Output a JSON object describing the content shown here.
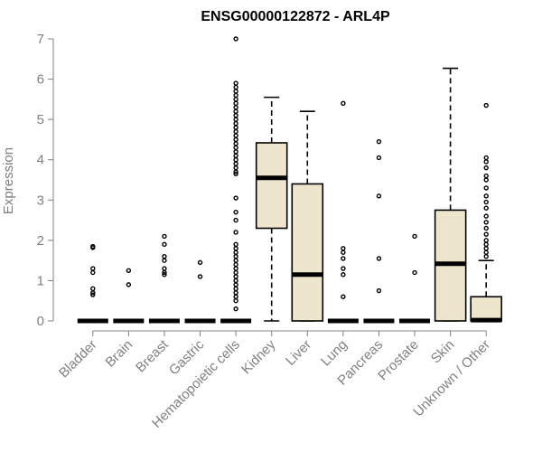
{
  "chart_data": {
    "type": "boxplot",
    "title": "ENSG00000122872 - ARL4P",
    "xlabel": "",
    "ylabel": "Expression",
    "ylim": [
      0,
      7
    ],
    "yticks": [
      0,
      1,
      2,
      3,
      4,
      5,
      6,
      7
    ],
    "grid": false,
    "box_fill": "#ede6cc",
    "categories": [
      "Bladder",
      "Brain",
      "Breast",
      "Gastric",
      "Hematopoietic cells",
      "Kidney",
      "Liver",
      "Lung",
      "Pancreas",
      "Prostate",
      "Skin",
      "Unknown / Other"
    ],
    "boxes": [
      {
        "q1": 0,
        "median": 0,
        "q3": 0,
        "low": 0,
        "high": 0,
        "outliers": [
          1.85,
          1.82,
          1.3,
          1.2,
          0.8,
          0.7,
          0.65
        ]
      },
      {
        "q1": 0,
        "median": 0,
        "q3": 0,
        "low": 0,
        "high": 0,
        "outliers": [
          1.25,
          0.9
        ]
      },
      {
        "q1": 0,
        "median": 0,
        "q3": 0,
        "low": 0,
        "high": 0,
        "outliers": [
          2.1,
          1.9,
          1.6,
          1.5,
          1.3,
          1.2,
          1.15
        ]
      },
      {
        "q1": 0,
        "median": 0,
        "q3": 0,
        "low": 0,
        "high": 0,
        "outliers": [
          1.45,
          1.1
        ]
      },
      {
        "q1": 0,
        "median": 0,
        "q3": 0,
        "low": 0,
        "high": 0,
        "outliers": [
          7.0,
          5.9,
          5.8,
          5.7,
          5.6,
          5.5,
          5.4,
          5.3,
          5.2,
          5.1,
          5.0,
          4.9,
          4.8,
          4.7,
          4.6,
          4.5,
          4.4,
          4.3,
          4.2,
          4.1,
          4.0,
          3.9,
          3.8,
          3.7,
          3.65,
          3.05,
          2.7,
          2.5,
          2.2,
          1.9,
          1.8,
          1.7,
          1.6,
          1.5,
          1.4,
          1.3,
          1.2,
          1.1,
          1.0,
          0.9,
          0.8,
          0.7,
          0.6,
          0.5,
          0.3
        ]
      },
      {
        "q1": 2.3,
        "median": 3.55,
        "q3": 4.42,
        "low": 0,
        "high": 5.55,
        "outliers": []
      },
      {
        "q1": 0,
        "median": 1.15,
        "q3": 3.4,
        "low": 0,
        "high": 5.2,
        "outliers": []
      },
      {
        "q1": 0,
        "median": 0,
        "q3": 0,
        "low": 0,
        "high": 0,
        "outliers": [
          5.4,
          1.8,
          1.7,
          1.55,
          1.3,
          1.15,
          0.6
        ]
      },
      {
        "q1": 0,
        "median": 0,
        "q3": 0,
        "low": 0,
        "high": 0,
        "outliers": [
          4.45,
          4.05,
          3.1,
          1.55,
          0.75
        ]
      },
      {
        "q1": 0,
        "median": 0,
        "q3": 0,
        "low": 0,
        "high": 0,
        "outliers": [
          2.1,
          1.2
        ]
      },
      {
        "q1": 0,
        "median": 1.42,
        "q3": 2.75,
        "low": 0,
        "high": 6.27,
        "outliers": []
      },
      {
        "q1": 0,
        "median": 0.02,
        "q3": 0.6,
        "low": 0,
        "high": 1.5,
        "outliers": [
          5.35,
          4.05,
          3.95,
          3.8,
          3.6,
          3.5,
          3.3,
          3.1,
          2.95,
          2.8,
          2.6,
          2.45,
          2.3,
          2.15,
          2.0,
          1.9,
          1.8,
          1.7,
          1.6
        ]
      }
    ]
  }
}
